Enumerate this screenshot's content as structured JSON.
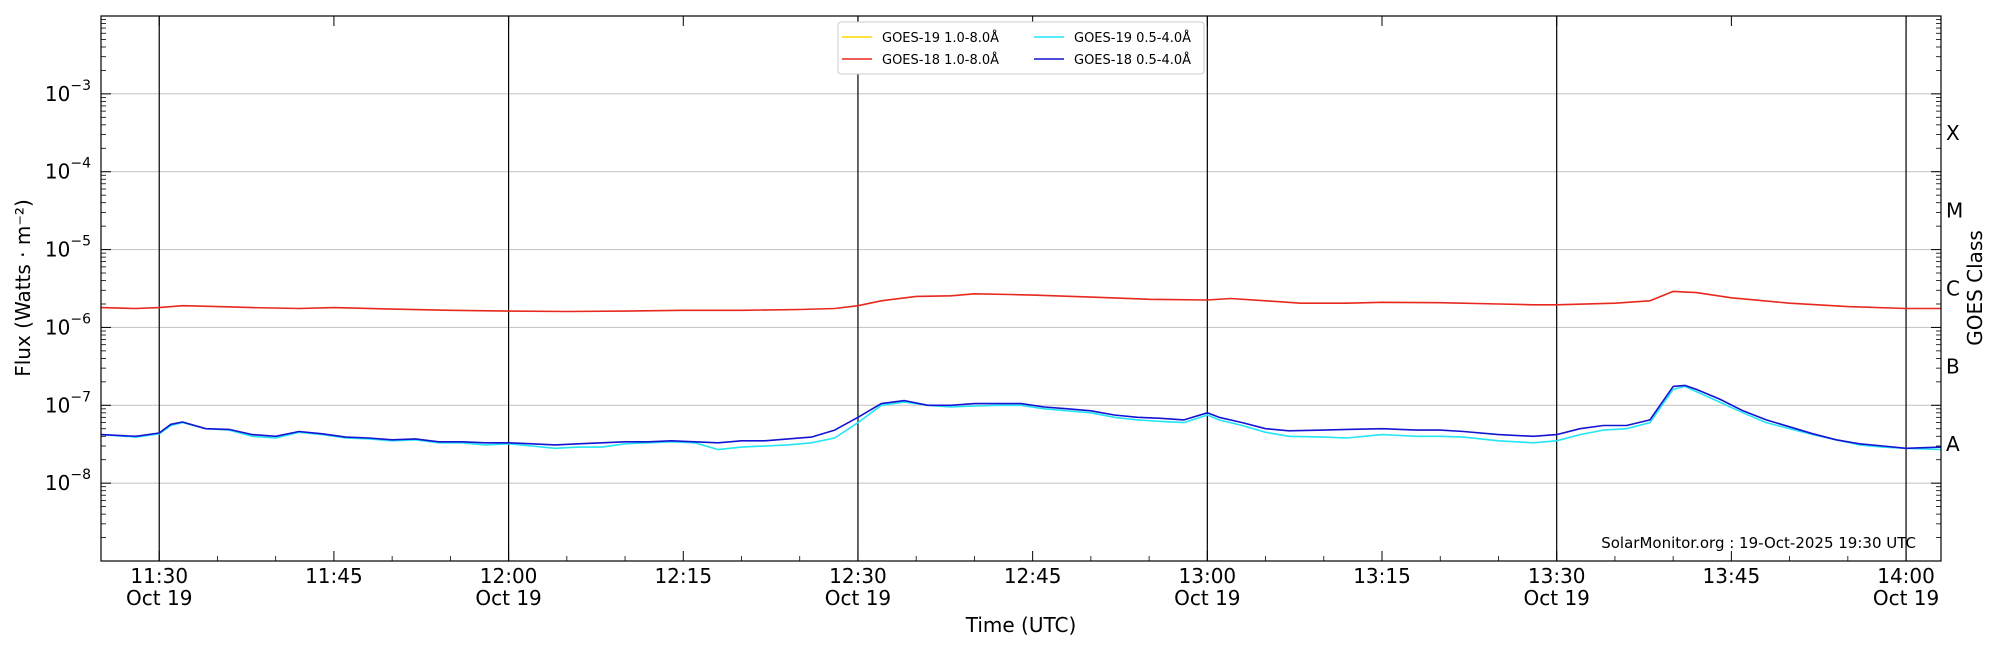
{
  "chart_data": {
    "type": "line",
    "title": "",
    "xlabel": "Time (UTC)",
    "ylabel": "Flux (Watts · m⁻²)",
    "right_axis_label": "GOES Class",
    "y_scale": "log",
    "ylim": [
      1e-09,
      0.01
    ],
    "xlim": [
      "11:25",
      "14:03"
    ],
    "grid": "horizontal at decades, vertical lines at half-hours",
    "legend": {
      "placement": "top-center",
      "columns": 2
    },
    "y_ticks": [
      {
        "value": 1e-08,
        "base": "10",
        "exp": "−8"
      },
      {
        "value": 1e-07,
        "base": "10",
        "exp": "−7"
      },
      {
        "value": 1e-06,
        "base": "10",
        "exp": "−6"
      },
      {
        "value": 1e-05,
        "base": "10",
        "exp": "−5"
      },
      {
        "value": 0.0001,
        "base": "10",
        "exp": "−4"
      },
      {
        "value": 0.001,
        "base": "10",
        "exp": "−3"
      }
    ],
    "goes_classes": [
      {
        "label": "A",
        "value": 3.16e-08
      },
      {
        "label": "B",
        "value": 3.16e-07
      },
      {
        "label": "C",
        "value": 3.16e-06
      },
      {
        "label": "M",
        "value": 3.16e-05
      },
      {
        "label": "X",
        "value": 0.000316
      }
    ],
    "x_ticks": [
      {
        "time": "11:30",
        "date": "Oct 19"
      },
      {
        "time": "11:45",
        "date": ""
      },
      {
        "time": "12:00",
        "date": "Oct 19"
      },
      {
        "time": "12:15",
        "date": ""
      },
      {
        "time": "12:30",
        "date": "Oct 19"
      },
      {
        "time": "12:45",
        "date": ""
      },
      {
        "time": "13:00",
        "date": "Oct 19"
      },
      {
        "time": "13:15",
        "date": ""
      },
      {
        "time": "13:30",
        "date": "Oct 19"
      },
      {
        "time": "13:45",
        "date": ""
      },
      {
        "time": "14:00",
        "date": "Oct 19"
      }
    ],
    "vertical_lines": [
      "11:30",
      "12:00",
      "12:30",
      "13:00",
      "13:30",
      "14:00"
    ],
    "series": [
      {
        "name": "GOES-19 1.0-8.0Å",
        "color": "#ffd700",
        "x": [],
        "values": []
      },
      {
        "name": "GOES-18 1.0-8.0Å",
        "color": "#e8281e",
        "x": [
          "11:25",
          "11:28",
          "11:30",
          "11:32",
          "11:35",
          "11:38",
          "11:42",
          "11:45",
          "11:50",
          "11:55",
          "12:00",
          "12:05",
          "12:10",
          "12:15",
          "12:20",
          "12:25",
          "12:28",
          "12:30",
          "12:32",
          "12:35",
          "12:38",
          "12:40",
          "12:43",
          "12:45",
          "12:50",
          "12:55",
          "13:00",
          "13:02",
          "13:05",
          "13:08",
          "13:12",
          "13:15",
          "13:20",
          "13:25",
          "13:28",
          "13:30",
          "13:35",
          "13:38",
          "13:40",
          "13:42",
          "13:45",
          "13:50",
          "13:55",
          "14:00",
          "14:03"
        ],
        "values": [
          1.8e-06,
          1.75e-06,
          1.8e-06,
          1.9e-06,
          1.85e-06,
          1.8e-06,
          1.75e-06,
          1.8e-06,
          1.72e-06,
          1.66e-06,
          1.62e-06,
          1.6e-06,
          1.62e-06,
          1.66e-06,
          1.66e-06,
          1.7e-06,
          1.75e-06,
          1.9e-06,
          2.2e-06,
          2.5e-06,
          2.55e-06,
          2.7e-06,
          2.65e-06,
          2.6e-06,
          2.45e-06,
          2.3e-06,
          2.25e-06,
          2.35e-06,
          2.2e-06,
          2.05e-06,
          2.05e-06,
          2.1e-06,
          2.08e-06,
          2e-06,
          1.95e-06,
          1.95e-06,
          2.05e-06,
          2.2e-06,
          2.9e-06,
          2.8e-06,
          2.4e-06,
          2.05e-06,
          1.85e-06,
          1.75e-06,
          1.75e-06
        ]
      },
      {
        "name": "GOES-19 0.5-4.0Å",
        "color": "#22e5f5",
        "x": [
          "11:25",
          "11:28",
          "11:30",
          "11:31",
          "11:32",
          "11:34",
          "11:36",
          "11:38",
          "11:40",
          "11:42",
          "11:44",
          "11:46",
          "11:48",
          "11:50",
          "11:52",
          "11:54",
          "11:56",
          "11:58",
          "12:00",
          "12:02",
          "12:04",
          "12:06",
          "12:08",
          "12:10",
          "12:12",
          "12:14",
          "12:16",
          "12:18",
          "12:20",
          "12:22",
          "12:24",
          "12:26",
          "12:28",
          "12:30",
          "12:32",
          "12:34",
          "12:36",
          "12:38",
          "12:40",
          "12:42",
          "12:44",
          "12:46",
          "12:48",
          "12:50",
          "12:52",
          "12:54",
          "12:56",
          "12:58",
          "13:00",
          "13:01",
          "13:03",
          "13:05",
          "13:07",
          "13:10",
          "13:12",
          "13:15",
          "13:18",
          "13:20",
          "13:22",
          "13:25",
          "13:28",
          "13:30",
          "13:32",
          "13:34",
          "13:36",
          "13:38",
          "13:40",
          "13:41",
          "13:42",
          "13:44",
          "13:46",
          "13:48",
          "13:50",
          "13:52",
          "13:54",
          "13:56",
          "13:58",
          "14:00",
          "14:03"
        ],
        "values": [
          4.2e-08,
          3.9e-08,
          4.3e-08,
          5.5e-08,
          6e-08,
          5e-08,
          4.8e-08,
          4e-08,
          3.8e-08,
          4.5e-08,
          4.2e-08,
          3.8e-08,
          3.7e-08,
          3.5e-08,
          3.6e-08,
          3.3e-08,
          3.3e-08,
          3.1e-08,
          3.2e-08,
          3e-08,
          2.8e-08,
          2.9e-08,
          2.9e-08,
          3.2e-08,
          3.3e-08,
          3.4e-08,
          3.3e-08,
          2.7e-08,
          2.9e-08,
          3e-08,
          3.1e-08,
          3.3e-08,
          3.8e-08,
          6e-08,
          1e-07,
          1.1e-07,
          1e-07,
          9.5e-08,
          9.8e-08,
          1e-07,
          1e-07,
          9e-08,
          8.5e-08,
          8e-08,
          7e-08,
          6.5e-08,
          6.2e-08,
          6e-08,
          7.5e-08,
          6.5e-08,
          5.5e-08,
          4.5e-08,
          4e-08,
          3.9e-08,
          3.8e-08,
          4.2e-08,
          4e-08,
          4e-08,
          3.9e-08,
          3.5e-08,
          3.3e-08,
          3.5e-08,
          4.2e-08,
          4.8e-08,
          5e-08,
          6e-08,
          1.6e-07,
          1.75e-07,
          1.5e-07,
          1.1e-07,
          8e-08,
          6e-08,
          5e-08,
          4.2e-08,
          3.6e-08,
          3.1e-08,
          2.9e-08,
          2.8e-08,
          2.7e-08
        ]
      },
      {
        "name": "GOES-18 0.5-4.0Å",
        "color": "#1414d2",
        "x": [
          "11:25",
          "11:28",
          "11:30",
          "11:31",
          "11:32",
          "11:34",
          "11:36",
          "11:38",
          "11:40",
          "11:42",
          "11:44",
          "11:46",
          "11:48",
          "11:50",
          "11:52",
          "11:54",
          "11:56",
          "11:58",
          "12:00",
          "12:02",
          "12:04",
          "12:06",
          "12:08",
          "12:10",
          "12:12",
          "12:14",
          "12:16",
          "12:18",
          "12:20",
          "12:22",
          "12:24",
          "12:26",
          "12:28",
          "12:30",
          "12:32",
          "12:34",
          "12:36",
          "12:38",
          "12:40",
          "12:42",
          "12:44",
          "12:46",
          "12:48",
          "12:50",
          "12:52",
          "12:54",
          "12:56",
          "12:58",
          "13:00",
          "13:01",
          "13:03",
          "13:05",
          "13:07",
          "13:10",
          "13:12",
          "13:15",
          "13:18",
          "13:20",
          "13:22",
          "13:25",
          "13:28",
          "13:30",
          "13:32",
          "13:34",
          "13:36",
          "13:38",
          "13:40",
          "13:41",
          "13:42",
          "13:44",
          "13:46",
          "13:48",
          "13:50",
          "13:52",
          "13:54",
          "13:56",
          "13:58",
          "14:00",
          "14:03"
        ],
        "values": [
          4.2e-08,
          4e-08,
          4.4e-08,
          5.7e-08,
          6.1e-08,
          5e-08,
          4.9e-08,
          4.2e-08,
          4e-08,
          4.6e-08,
          4.3e-08,
          3.9e-08,
          3.8e-08,
          3.6e-08,
          3.7e-08,
          3.4e-08,
          3.4e-08,
          3.3e-08,
          3.3e-08,
          3.2e-08,
          3.1e-08,
          3.2e-08,
          3.3e-08,
          3.4e-08,
          3.4e-08,
          3.5e-08,
          3.4e-08,
          3.3e-08,
          3.5e-08,
          3.5e-08,
          3.7e-08,
          3.9e-08,
          4.8e-08,
          7e-08,
          1.05e-07,
          1.15e-07,
          1e-07,
          1e-07,
          1.05e-07,
          1.05e-07,
          1.05e-07,
          9.5e-08,
          9e-08,
          8.5e-08,
          7.5e-08,
          7e-08,
          6.8e-08,
          6.5e-08,
          8e-08,
          7e-08,
          6e-08,
          5e-08,
          4.7e-08,
          4.8e-08,
          4.9e-08,
          5e-08,
          4.8e-08,
          4.8e-08,
          4.6e-08,
          4.2e-08,
          4e-08,
          4.2e-08,
          5e-08,
          5.5e-08,
          5.5e-08,
          6.5e-08,
          1.75e-07,
          1.8e-07,
          1.6e-07,
          1.2e-07,
          8.5e-08,
          6.5e-08,
          5.3e-08,
          4.3e-08,
          3.6e-08,
          3.2e-08,
          3e-08,
          2.8e-08,
          2.9e-08
        ]
      }
    ]
  },
  "credit": "SolarMonitor.org : 19-Oct-2025 19:30 UTC"
}
